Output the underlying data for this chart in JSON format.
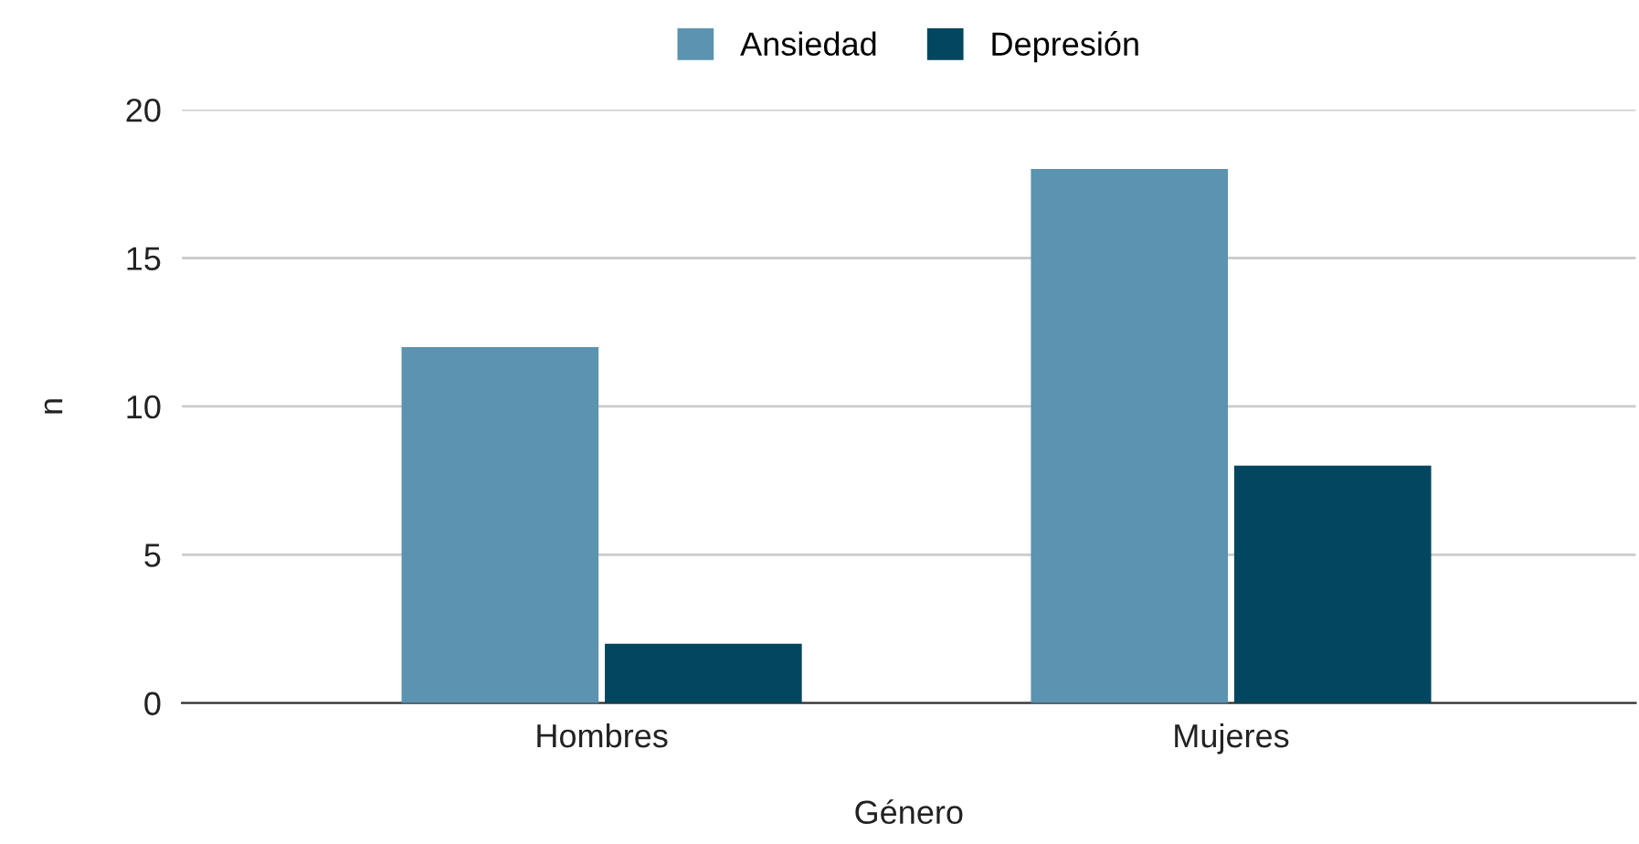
{
  "chart_data": {
    "type": "bar",
    "xlabel": "Género",
    "ylabel": "n",
    "categories": [
      "Hombres",
      "Mujeres"
    ],
    "series": [
      {
        "name": "Ansiedad",
        "color": "#5b93b0",
        "values": [
          12,
          18
        ]
      },
      {
        "name": "Depresión",
        "color": "#02465f",
        "values": [
          2,
          8
        ]
      }
    ],
    "ylim": [
      0,
      20
    ],
    "yticks": [
      0,
      5,
      10,
      15,
      20
    ],
    "grid": "y",
    "legend": "top"
  }
}
